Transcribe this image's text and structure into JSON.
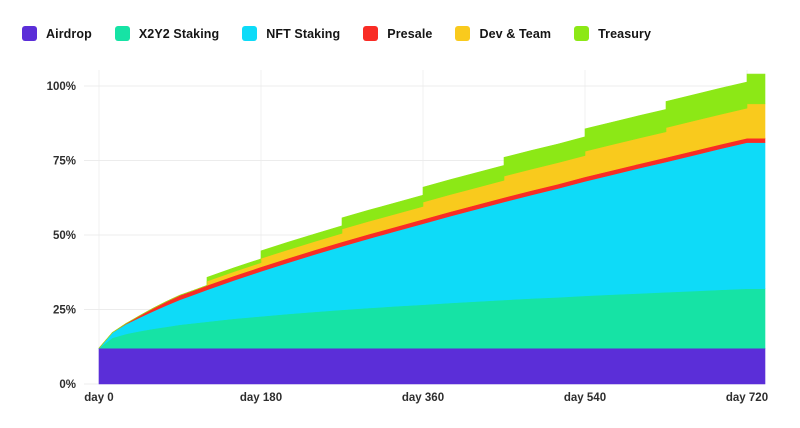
{
  "chart_data": {
    "type": "area",
    "stacked": true,
    "title": "",
    "xlabel": "",
    "ylabel": "",
    "x_unit": "days",
    "xlim": [
      0,
      740
    ],
    "ylim": [
      0,
      105
    ],
    "grid": true,
    "legend_position": "top-left",
    "xticks": [
      {
        "value": 0,
        "label": "day 0"
      },
      {
        "value": 180,
        "label": "day 180"
      },
      {
        "value": 360,
        "label": "day 360"
      },
      {
        "value": 540,
        "label": "day 540"
      },
      {
        "value": 720,
        "label": "day 720"
      }
    ],
    "yticks": [
      {
        "value": 0,
        "label": "0%"
      },
      {
        "value": 25,
        "label": "25%"
      },
      {
        "value": 50,
        "label": "50%"
      },
      {
        "value": 75,
        "label": "75%"
      },
      {
        "value": 100,
        "label": "100%"
      }
    ],
    "x": [
      0,
      15,
      30,
      45,
      60,
      75,
      90,
      105,
      120,
      135,
      150,
      165,
      180,
      210,
      240,
      270,
      300,
      330,
      360,
      390,
      420,
      450,
      480,
      510,
      540,
      570,
      600,
      630,
      660,
      690,
      720,
      740
    ],
    "series": [
      {
        "name": "Airdrop",
        "color": "#5b2ed8",
        "kind": "smooth",
        "values": [
          12,
          12,
          12,
          12,
          12,
          12,
          12,
          12,
          12,
          12,
          12,
          12,
          12,
          12,
          12,
          12,
          12,
          12,
          12,
          12,
          12,
          12,
          12,
          12,
          12,
          12,
          12,
          12,
          12,
          12,
          12,
          12
        ]
      },
      {
        "name": "X2Y2 Staking",
        "color": "#16e3a5",
        "kind": "smooth",
        "values": [
          0,
          3.5,
          4.8,
          5.7,
          6.5,
          7.2,
          7.9,
          8.4,
          8.9,
          9.4,
          9.9,
          10.3,
          10.7,
          11.5,
          12.2,
          12.9,
          13.5,
          14.1,
          14.6,
          15.2,
          15.7,
          16.2,
          16.7,
          17.1,
          17.6,
          18.0,
          18.4,
          18.8,
          19.2,
          19.6,
          20,
          20
        ]
      },
      {
        "name": "NFT Staking",
        "color": "#0edbf8",
        "kind": "smooth",
        "values": [
          0,
          1.8,
          3.3,
          4.6,
          5.9,
          7.2,
          8.4,
          9.5,
          10.7,
          11.8,
          12.9,
          14.0,
          15.1,
          17.2,
          19.3,
          21.3,
          23.3,
          25.2,
          27.2,
          29.1,
          31.0,
          32.9,
          34.7,
          36.5,
          38.4,
          40.2,
          42.0,
          43.7,
          45.5,
          47.3,
          49,
          49
        ]
      },
      {
        "name": "Presale",
        "color": "#f92c25",
        "kind": "smooth",
        "values": [
          0,
          0,
          0.2,
          0.6,
          1.0,
          1.3,
          1.5,
          1.5,
          1.5,
          1.5,
          1.5,
          1.5,
          1.5,
          1.5,
          1.5,
          1.5,
          1.5,
          1.5,
          1.5,
          1.5,
          1.5,
          1.5,
          1.5,
          1.5,
          1.5,
          1.5,
          1.5,
          1.5,
          1.5,
          1.5,
          1.5,
          1.5
        ]
      },
      {
        "name": "Dev & Team",
        "color": "#f9ca1d",
        "kind": "steps",
        "unlocks": [
          [
            120,
            1.44
          ],
          [
            180,
            2.88
          ],
          [
            270,
            4.31
          ],
          [
            360,
            5.75
          ],
          [
            450,
            7.19
          ],
          [
            540,
            8.63
          ],
          [
            630,
            10.06
          ],
          [
            720,
            11.5
          ]
        ]
      },
      {
        "name": "Treasury",
        "color": "#8ce816",
        "kind": "steps",
        "unlocks": [
          [
            120,
            1.25
          ],
          [
            180,
            2.5
          ],
          [
            270,
            3.75
          ],
          [
            360,
            5.0
          ],
          [
            450,
            6.25
          ],
          [
            540,
            7.5
          ],
          [
            630,
            8.75
          ],
          [
            720,
            10.0
          ]
        ]
      }
    ]
  }
}
